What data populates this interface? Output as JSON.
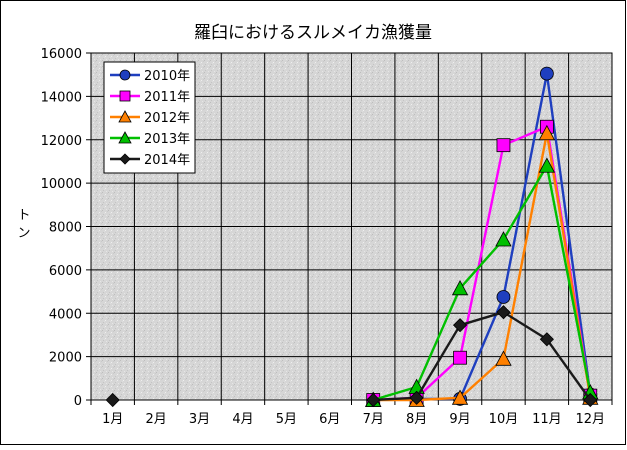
{
  "chart_data": {
    "type": "line",
    "title": "羅臼におけるスルメイカ漁獲量",
    "ylabel": "トン",
    "xlabel": "",
    "categories": [
      "1月",
      "2月",
      "3月",
      "4月",
      "5月",
      "6月",
      "7月",
      "8月",
      "9月",
      "10月",
      "11月",
      "12月"
    ],
    "y_ticks": [
      "0",
      "2000",
      "4000",
      "6000",
      "8000",
      "10000",
      "12000",
      "14000",
      "16000"
    ],
    "ylim": [
      0,
      16000
    ],
    "grid": true,
    "legend_position": "top-left",
    "series": [
      {
        "name": "2010年",
        "color": "#1f3fbf",
        "marker": "circle",
        "values": [
          null,
          null,
          null,
          null,
          null,
          null,
          0,
          50,
          50,
          4750,
          15050,
          250
        ]
      },
      {
        "name": "2011年",
        "color": "#ff00ff",
        "marker": "square",
        "values": [
          null,
          null,
          null,
          null,
          null,
          null,
          0,
          100,
          1950,
          11750,
          12600,
          200
        ]
      },
      {
        "name": "2012年",
        "color": "#ff8000",
        "marker": "triangle",
        "values": [
          null,
          null,
          null,
          null,
          null,
          null,
          0,
          0,
          100,
          1900,
          12300,
          100
        ]
      },
      {
        "name": "2013年",
        "color": "#00c000",
        "marker": "triangle",
        "values": [
          null,
          null,
          null,
          null,
          null,
          null,
          0,
          600,
          5150,
          7400,
          10800,
          350
        ]
      },
      {
        "name": "2014年",
        "color": "#1a1a1a",
        "marker": "diamond",
        "values": [
          0,
          null,
          null,
          null,
          null,
          null,
          0,
          100,
          3450,
          4050,
          2800,
          0
        ]
      }
    ]
  }
}
